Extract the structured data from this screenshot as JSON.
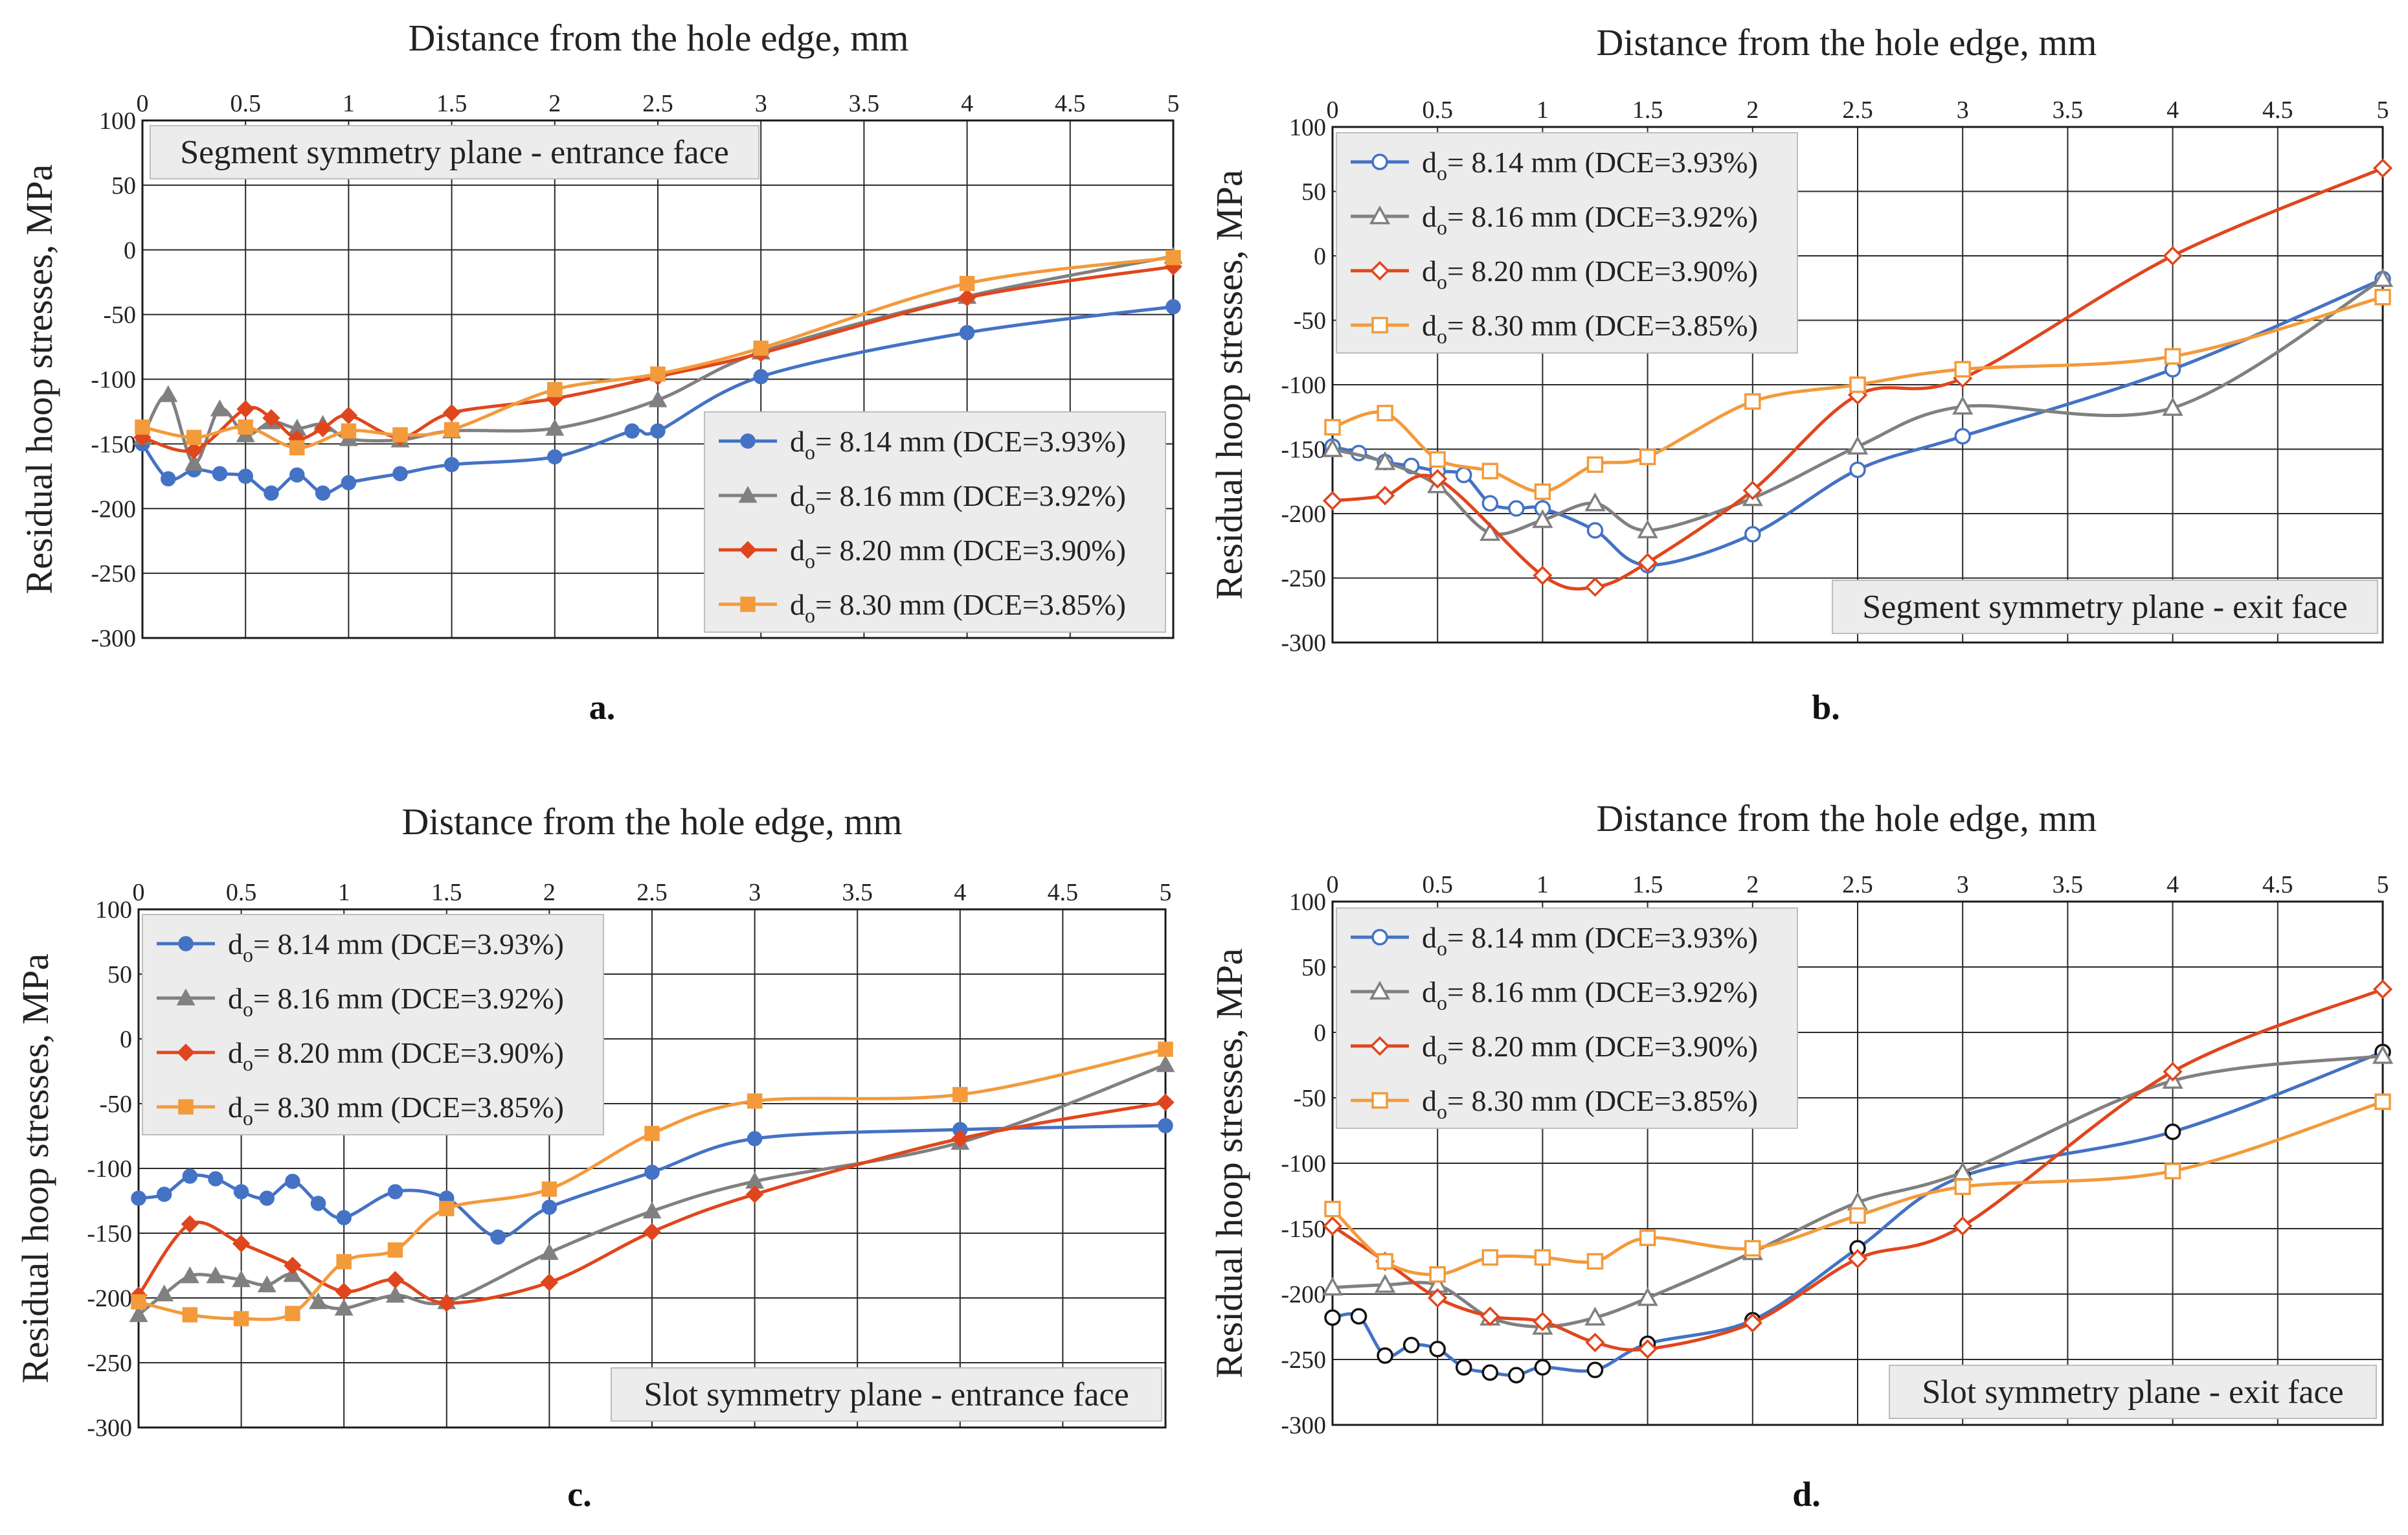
{
  "chart_data": [
    {
      "type": "line",
      "panel_label": "a.",
      "title": "Distance from the hole edge, mm",
      "xlabel": "Distance from the hole edge, mm",
      "ylabel": "Residual hoop stresses, MPa",
      "xlim": [
        0,
        5
      ],
      "ylim": [
        -300,
        100
      ],
      "x_ticks": [
        "0",
        "0.5",
        "1",
        "1.5",
        "2",
        "2.5",
        "3",
        "3.5",
        "4",
        "4.5",
        "5"
      ],
      "y_ticks": [
        "100",
        "50",
        "0",
        "-50",
        "-100",
        "-150",
        "-200",
        "-250",
        "-300"
      ],
      "grid": true,
      "annotation": "Segment symmetry plane - entrance face",
      "annotation_position": "top-left",
      "legend_position": "bottom-right",
      "marker_fill": "filled",
      "series": [
        {
          "name": "d",
          "sub": "o",
          "suffix": "= 8.14 mm (DCE=3.93%)",
          "color": "#4472C4",
          "marker": "circle",
          "x": [
            0,
            0.125,
            0.25,
            0.375,
            0.5,
            0.625,
            0.75,
            0.875,
            1,
            1.25,
            1.5,
            2,
            2.375,
            2.5,
            3,
            4,
            5
          ],
          "y": [
            -150,
            -177,
            -170,
            -173,
            -175,
            -188,
            -174,
            -188,
            -180,
            -173,
            -166,
            -160,
            -140,
            -140,
            -98,
            -64,
            -44
          ]
        },
        {
          "name": "d",
          "sub": "o",
          "suffix": "= 8.16 mm (DCE=3.92%)",
          "color": "#808080",
          "marker": "triangle",
          "x": [
            0,
            0.125,
            0.25,
            0.375,
            0.5,
            0.625,
            0.75,
            0.875,
            1,
            1.25,
            1.5,
            2,
            2.5,
            3,
            4,
            5
          ],
          "y": [
            -145,
            -112,
            -165,
            -123,
            -143,
            -133,
            -138,
            -135,
            -146,
            -147,
            -140,
            -138,
            -116,
            -79,
            -36,
            -5
          ]
        },
        {
          "name": "d",
          "sub": "o",
          "suffix": "= 8.20 mm (DCE=3.90%)",
          "color": "#E0461D",
          "marker": "diamond",
          "x": [
            0,
            0.25,
            0.5,
            0.625,
            0.75,
            0.875,
            1,
            1.25,
            1.5,
            2,
            2.5,
            3,
            4,
            5
          ],
          "y": [
            -145,
            -155,
            -123,
            -130,
            -146,
            -138,
            -128,
            -145,
            -126,
            -115,
            -98,
            -80,
            -37,
            -13
          ]
        },
        {
          "name": "d",
          "sub": "o",
          "suffix": "= 8.30 mm (DCE=3.85%)",
          "color": "#F39A3B",
          "marker": "square",
          "x": [
            0,
            0.25,
            0.5,
            0.75,
            1,
            1.25,
            1.5,
            2,
            2.5,
            3,
            4,
            5
          ],
          "y": [
            -137,
            -145,
            -137,
            -153,
            -140,
            -143,
            -139,
            -108,
            -96,
            -76,
            -26,
            -6
          ]
        }
      ]
    },
    {
      "type": "line",
      "panel_label": "b.",
      "title": "Distance from the hole edge, mm",
      "xlabel": "Distance from the hole edge, mm",
      "ylabel": "Residual hoop stresses, MPa",
      "xlim": [
        0,
        5
      ],
      "ylim": [
        -300,
        100
      ],
      "x_ticks": [
        "0",
        "0.5",
        "1",
        "1.5",
        "2",
        "2.5",
        "3",
        "3.5",
        "4",
        "4.5",
        "5"
      ],
      "y_ticks": [
        "100",
        "50",
        "0",
        "-50",
        "-100",
        "-150",
        "-200",
        "-250",
        "-300"
      ],
      "grid": true,
      "annotation": "Segment symmetry plane - exit face",
      "annotation_position": "bottom-right",
      "legend_position": "top-left",
      "marker_fill": "open",
      "series": [
        {
          "name": "d",
          "sub": "o",
          "suffix": "= 8.14 mm (DCE=3.93%)",
          "color": "#4472C4",
          "marker": "circle",
          "x": [
            0,
            0.125,
            0.25,
            0.375,
            0.5,
            0.625,
            0.75,
            0.875,
            1,
            1.25,
            1.5,
            2,
            2.5,
            3,
            4,
            5
          ],
          "y": [
            -148,
            -153,
            -160,
            -163,
            -167,
            -170,
            -192,
            -196,
            -196,
            -213,
            -240,
            -216,
            -166,
            -140,
            -88,
            -18
          ]
        },
        {
          "name": "d",
          "sub": "o",
          "suffix": "= 8.16 mm (DCE=3.92%)",
          "color": "#808080",
          "marker": "triangle",
          "x": [
            0,
            0.25,
            0.5,
            0.75,
            1,
            1.25,
            1.5,
            2,
            2.5,
            3,
            4,
            5
          ],
          "y": [
            -150,
            -160,
            -178,
            -215,
            -205,
            -192,
            -213,
            -188,
            -148,
            -117,
            -118,
            -18
          ]
        },
        {
          "name": "d",
          "sub": "o",
          "suffix": "= 8.20 mm (DCE=3.90%)",
          "color": "#E0461D",
          "marker": "diamond",
          "x": [
            0,
            0.25,
            0.5,
            1,
            1.25,
            1.5,
            2,
            2.5,
            3,
            4,
            5
          ],
          "y": [
            -190,
            -186,
            -173,
            -248,
            -257,
            -238,
            -182,
            -108,
            -95,
            0,
            68
          ]
        },
        {
          "name": "d",
          "sub": "o",
          "suffix": "= 8.30 mm (DCE=3.85%)",
          "color": "#F39A3B",
          "marker": "square",
          "x": [
            0,
            0.25,
            0.5,
            0.75,
            1,
            1.25,
            1.5,
            2,
            2.5,
            3,
            4,
            5
          ],
          "y": [
            -133,
            -122,
            -158,
            -167,
            -183,
            -162,
            -156,
            -113,
            -100,
            -88,
            -78,
            -32
          ]
        }
      ]
    },
    {
      "type": "line",
      "panel_label": "c.",
      "title": "Distance from the hole edge, mm",
      "xlabel": "Distance from the hole edge, mm",
      "ylabel": "Residual hoop stresses, MPa",
      "xlim": [
        0,
        5
      ],
      "ylim": [
        -300,
        100
      ],
      "x_ticks": [
        "0",
        "0.5",
        "1",
        "1.5",
        "2",
        "2.5",
        "3",
        "3.5",
        "4",
        "4.5",
        "5"
      ],
      "y_ticks": [
        "100",
        "50",
        "0",
        "-50",
        "-100",
        "-150",
        "-200",
        "-250",
        "-300"
      ],
      "grid": true,
      "annotation": "Slot symmetry plane - entrance face",
      "annotation_position": "bottom-right",
      "legend_position": "top-left",
      "marker_fill": "filled",
      "series": [
        {
          "name": "d",
          "sub": "o",
          "suffix": "= 8.14 mm (DCE=3.93%)",
          "color": "#4472C4",
          "marker": "circle",
          "x": [
            0,
            0.125,
            0.25,
            0.375,
            0.5,
            0.625,
            0.75,
            0.875,
            1,
            1.25,
            1.5,
            1.75,
            2,
            2.5,
            3,
            4,
            5
          ],
          "y": [
            -123,
            -120,
            -106,
            -108,
            -118,
            -123,
            -110,
            -127,
            -138,
            -118,
            -123,
            -153,
            -130,
            -103,
            -77,
            -70,
            -67
          ]
        },
        {
          "name": "d",
          "sub": "o",
          "suffix": "= 8.16 mm (DCE=3.92%)",
          "color": "#808080",
          "marker": "triangle",
          "x": [
            0,
            0.125,
            0.25,
            0.375,
            0.5,
            0.625,
            0.75,
            0.875,
            1,
            1.25,
            1.5,
            2,
            2.5,
            3,
            4,
            5
          ],
          "y": [
            -213,
            -197,
            -183,
            -183,
            -186,
            -190,
            -182,
            -203,
            -208,
            -198,
            -203,
            -165,
            -133,
            -110,
            -80,
            -20
          ]
        },
        {
          "name": "d",
          "sub": "o",
          "suffix": "= 8.20 mm (DCE=3.90%)",
          "color": "#E0461D",
          "marker": "diamond",
          "x": [
            0,
            0.25,
            0.5,
            0.75,
            1,
            1.25,
            1.5,
            2,
            2.5,
            3,
            4,
            5
          ],
          "y": [
            -198,
            -143,
            -158,
            -175,
            -195,
            -186,
            -204,
            -188,
            -149,
            -120,
            -77,
            -49
          ]
        },
        {
          "name": "d",
          "sub": "o",
          "suffix": "= 8.30 mm (DCE=3.85%)",
          "color": "#F39A3B",
          "marker": "square",
          "x": [
            0,
            0.25,
            0.5,
            0.75,
            1,
            1.25,
            1.5,
            2,
            2.5,
            3,
            4,
            5
          ],
          "y": [
            -203,
            -213,
            -216,
            -212,
            -172,
            -163,
            -131,
            -116,
            -73,
            -48,
            -43,
            -8
          ]
        }
      ]
    },
    {
      "type": "line",
      "panel_label": "d.",
      "title": "Distance from the hole edge, mm",
      "xlabel": "Distance from the hole edge, mm",
      "ylabel": "Residual hoop stresses, MPa",
      "xlim": [
        0,
        5
      ],
      "ylim": [
        -300,
        100
      ],
      "x_ticks": [
        "0",
        "0.5",
        "1",
        "1.5",
        "2",
        "2.5",
        "3",
        "3.5",
        "4",
        "4.5",
        "5"
      ],
      "y_ticks": [
        "100",
        "50",
        "0",
        "-50",
        "-100",
        "-150",
        "-200",
        "-250",
        "-300"
      ],
      "grid": true,
      "annotation": "Slot symmetry plane - exit face",
      "annotation_position": "bottom-right",
      "legend_position": "top-left",
      "marker_fill": "open",
      "series": [
        {
          "name": "d",
          "sub": "o",
          "suffix": "= 8.14 mm (DCE=3.93%)",
          "color": "#4472C4",
          "marker": "circle",
          "marker_stroke": "#111111",
          "x": [
            0,
            0.125,
            0.25,
            0.375,
            0.5,
            0.625,
            0.75,
            0.875,
            1,
            1.25,
            1.5,
            2,
            2.5,
            3,
            4,
            5
          ],
          "y": [
            -218,
            -217,
            -247,
            -239,
            -242,
            -256,
            -260,
            -262,
            -256,
            -258,
            -238,
            -220,
            -165,
            -110,
            -76,
            -15
          ]
        },
        {
          "name": "d",
          "sub": "o",
          "suffix": "= 8.16 mm (DCE=3.92%)",
          "color": "#808080",
          "marker": "triangle",
          "x": [
            0,
            0.25,
            0.5,
            0.75,
            1,
            1.25,
            1.5,
            2,
            2.5,
            3,
            4,
            5
          ],
          "y": [
            -195,
            -193,
            -193,
            -218,
            -225,
            -218,
            -203,
            -168,
            -130,
            -107,
            -37,
            -18
          ]
        },
        {
          "name": "d",
          "sub": "o",
          "suffix": "= 8.20 mm (DCE=3.90%)",
          "color": "#E0461D",
          "marker": "diamond",
          "x": [
            0,
            0.25,
            0.5,
            0.75,
            1,
            1.25,
            1.5,
            2,
            2.5,
            3,
            4,
            5
          ],
          "y": [
            -148,
            -175,
            -203,
            -217,
            -221,
            -237,
            -242,
            -222,
            -173,
            -148,
            -30,
            33
          ]
        },
        {
          "name": "d",
          "sub": "o",
          "suffix": "= 8.30 mm (DCE=3.85%)",
          "color": "#F39A3B",
          "marker": "square",
          "x": [
            0,
            0.25,
            0.5,
            0.75,
            1,
            1.25,
            1.5,
            2,
            2.5,
            3,
            4,
            5
          ],
          "y": [
            -135,
            -175,
            -185,
            -172,
            -172,
            -175,
            -157,
            -165,
            -140,
            -118,
            -106,
            -53
          ]
        }
      ]
    }
  ]
}
